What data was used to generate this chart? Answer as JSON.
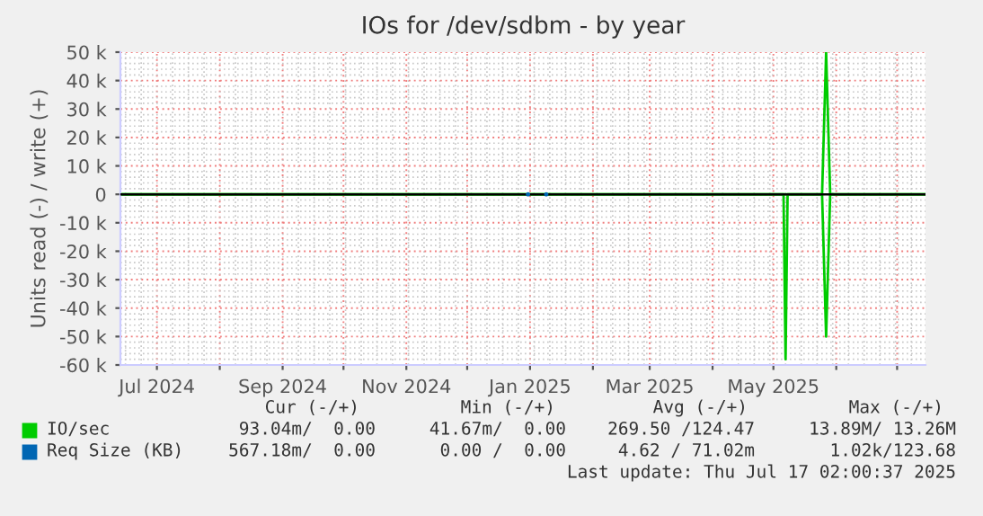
{
  "chart_data": {
    "type": "line",
    "title": "IOs for /dev/sdbm - by year",
    "ylabel": "Units read (-) / write (+)",
    "xlim": [
      "2024-06-13",
      "2025-07-15"
    ],
    "xticks": [
      {
        "value": "2024-07-01",
        "label": "Jul 2024"
      },
      {
        "value": "2024-08-01",
        "label": null
      },
      {
        "value": "2024-09-01",
        "label": "Sep 2024"
      },
      {
        "value": "2024-10-01",
        "label": null
      },
      {
        "value": "2024-11-01",
        "label": "Nov 2024"
      },
      {
        "value": "2024-12-01",
        "label": null
      },
      {
        "value": "2025-01-01",
        "label": "Jan 2025"
      },
      {
        "value": "2025-02-01",
        "label": null
      },
      {
        "value": "2025-03-01",
        "label": "Mar 2025"
      },
      {
        "value": "2025-04-01",
        "label": null
      },
      {
        "value": "2025-05-01",
        "label": "May 2025"
      },
      {
        "value": "2025-06-01",
        "label": null
      },
      {
        "value": "2025-07-01",
        "label": null
      }
    ],
    "ylim": [
      -60000,
      50000
    ],
    "yticks": [
      {
        "value": -60000,
        "label": "-60 k"
      },
      {
        "value": -50000,
        "label": "-50 k"
      },
      {
        "value": -40000,
        "label": "-40 k"
      },
      {
        "value": -30000,
        "label": "-30 k"
      },
      {
        "value": -20000,
        "label": "-20 k"
      },
      {
        "value": -10000,
        "label": "-10 k"
      },
      0,
      {
        "value": 10000,
        "label": "10 k"
      },
      {
        "value": 20000,
        "label": "20 k"
      },
      {
        "value": 30000,
        "label": "30 k"
      },
      {
        "value": 40000,
        "label": "40 k"
      },
      {
        "value": 50000,
        "label": "50 k"
      }
    ],
    "grid": true,
    "legend": "bottom",
    "series": [
      {
        "name": "IO/sec",
        "color": "#00cc00",
        "x": [
          "2024-06-13",
          "2025-05-25",
          "2025-05-27",
          "2025-05-29",
          "2025-07-15"
        ],
        "values": [
          0,
          0,
          50000,
          0,
          0
        ]
      },
      {
        "color": "#00cc00",
        "x": [
          "2024-06-13",
          "2025-05-06",
          "2025-05-07",
          "2025-05-08",
          "2025-05-25",
          "2025-05-27",
          "2025-05-29",
          "2025-07-15"
        ],
        "values": [
          0,
          0,
          -58000,
          0,
          0,
          -50000,
          0,
          0
        ]
      },
      {
        "name": "Req Size (KB)",
        "type": "scatter",
        "color": "#0066b3",
        "x": [
          "2024-12-31",
          "2025-01-09"
        ],
        "values": [
          0,
          0
        ]
      }
    ],
    "ref_lines": [
      {
        "axis": "y",
        "value": 0,
        "color": "#000000"
      }
    ],
    "annotations": [
      "Cur (-/+)",
      "Min (-/+)",
      "Avg (-/+)",
      "Max (-/+)",
      "93.04m/  0.00",
      "41.67m/  0.00",
      "269.50 /124.47",
      "13.89M/ 13.26M",
      "567.18m/  0.00",
      "0.00 /  0.00",
      "4.62 / 71.02m",
      "1.02k/123.68",
      "Last update: Thu Jul 17 02:00:37 2025"
    ]
  }
}
